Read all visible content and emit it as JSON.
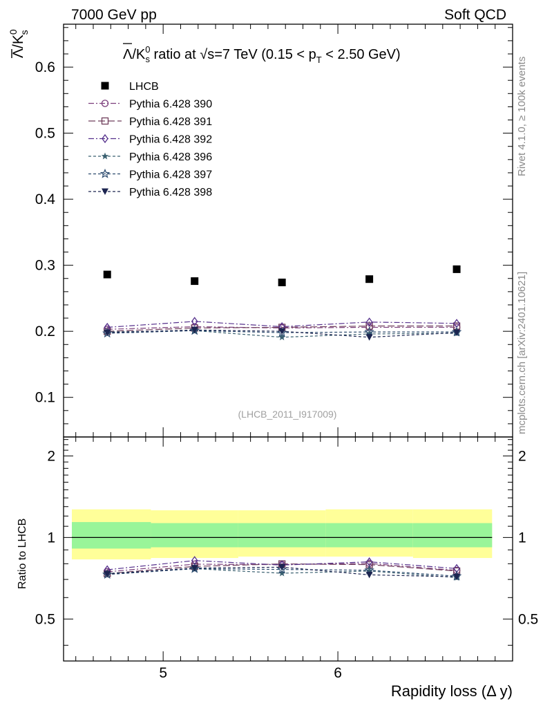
{
  "header": {
    "left": "7000 GeV pp",
    "right": "Soft QCD"
  },
  "side_labels": {
    "top": "Rivet 4.1.0, ≥ 100k events",
    "bottom": "mcplots.cern.ch [arXiv:2401.10621]"
  },
  "watermark": "(LHCB_2011_I917009)",
  "colors": {
    "data": "#000000",
    "band_outer": "#ffff99",
    "band_inner": "#99f599",
    "p390": "#7a3c7a",
    "p391": "#6e3c5a",
    "p392": "#55308c",
    "p396": "#3a6070",
    "p397": "#2b4a6e",
    "p398": "#1c2550"
  },
  "chart_data": [
    {
      "panel": "main",
      "type": "scatter",
      "title_parts": {
        "lambda": "Λ",
        "k": "/K",
        "k_sup": "0",
        "k_sub": "s",
        "mid": " ratio at √s=7 TeV (0.15 < p",
        "pt_sub": "T",
        "end": " < 2.50 GeV)"
      },
      "ylabel_parts": {
        "lambda": "Λ",
        "k": "/K",
        "sup": "0",
        "sub": "s"
      },
      "xlim": [
        4.43,
        7.0
      ],
      "ylim": [
        0.04,
        0.665
      ],
      "yticks": [
        0.1,
        0.2,
        0.3,
        0.4,
        0.5,
        0.6
      ],
      "ytick_labels": [
        "0.1",
        "0.2",
        "0.3",
        "0.4",
        "0.5",
        "0.6"
      ],
      "x": [
        4.68,
        5.18,
        5.68,
        6.18,
        6.68
      ],
      "series": [
        {
          "name": "LHCB",
          "style": "data",
          "marker": "square-filled",
          "values": [
            0.286,
            0.276,
            0.274,
            0.279,
            0.294
          ]
        },
        {
          "name": "Pythia 6.428 390",
          "style": "p390",
          "marker": "circle-open",
          "dash": "8 3 2 3",
          "values": [
            0.203,
            0.207,
            0.205,
            0.206,
            0.206
          ]
        },
        {
          "name": "Pythia 6.428 391",
          "style": "p391",
          "marker": "square-open",
          "dash": "10 4",
          "values": [
            0.2,
            0.205,
            0.206,
            0.208,
            0.208
          ]
        },
        {
          "name": "Pythia 6.428 392",
          "style": "p392",
          "marker": "diamond-open",
          "dash": "8 3 2 3",
          "values": [
            0.206,
            0.215,
            0.207,
            0.214,
            0.212
          ]
        },
        {
          "name": "Pythia 6.428 396",
          "style": "p396",
          "marker": "star-filled",
          "dash": "4 3",
          "values": [
            0.199,
            0.201,
            0.191,
            0.196,
            0.197
          ]
        },
        {
          "name": "Pythia 6.428 397",
          "style": "p397",
          "marker": "star-open",
          "dash": "4 3",
          "values": [
            0.197,
            0.201,
            0.198,
            0.199,
            0.199
          ]
        },
        {
          "name": "Pythia 6.428 398",
          "style": "p398",
          "marker": "triangle-down-filled",
          "dash": "4 3",
          "values": [
            0.198,
            0.202,
            0.2,
            0.191,
            0.198
          ]
        }
      ]
    },
    {
      "panel": "ratio",
      "type": "scatter",
      "ylabel": "Ratio to LHCB",
      "xlabel": "Rapidity loss (Δ y)",
      "xlim": [
        4.43,
        7.0
      ],
      "ylim": [
        0.35,
        2.35
      ],
      "xticks": [
        5,
        6
      ],
      "xtick_labels": [
        "5",
        "6"
      ],
      "yticks": [
        0.5,
        1,
        2
      ],
      "ytick_labels": [
        "0.5",
        "1",
        "2"
      ],
      "bin_edges": [
        4.43,
        4.93,
        5.43,
        5.93,
        6.43,
        6.93
      ],
      "band_outer": [
        [
          0.83,
          1.27
        ],
        [
          0.84,
          1.26
        ],
        [
          0.85,
          1.26
        ],
        [
          0.85,
          1.27
        ],
        [
          0.84,
          1.27
        ]
      ],
      "band_inner": [
        [
          0.91,
          1.14
        ],
        [
          0.92,
          1.13
        ],
        [
          0.92,
          1.13
        ],
        [
          0.92,
          1.13
        ],
        [
          0.92,
          1.13
        ]
      ],
      "x": [
        4.68,
        5.18,
        5.68,
        6.18,
        6.68
      ],
      "series": [
        {
          "name": "Pythia 6.428 390",
          "style": "p390",
          "marker": "circle-open",
          "dash": "8 3 2 3",
          "values": [
            0.747,
            0.797,
            0.794,
            0.802,
            0.756
          ]
        },
        {
          "name": "Pythia 6.428 391",
          "style": "p391",
          "marker": "square-open",
          "dash": "10 4",
          "values": [
            0.736,
            0.782,
            0.799,
            0.794,
            0.752
          ]
        },
        {
          "name": "Pythia 6.428 392",
          "style": "p392",
          "marker": "diamond-open",
          "dash": "8 3 2 3",
          "values": [
            0.76,
            0.822,
            0.791,
            0.813,
            0.768
          ]
        },
        {
          "name": "Pythia 6.428 396",
          "style": "p396",
          "marker": "star-filled",
          "dash": "4 3",
          "values": [
            0.736,
            0.767,
            0.738,
            0.752,
            0.711
          ]
        },
        {
          "name": "Pythia 6.428 397",
          "style": "p397",
          "marker": "star-open",
          "dash": "4 3",
          "values": [
            0.73,
            0.767,
            0.762,
            0.757,
            0.72
          ]
        },
        {
          "name": "Pythia 6.428 398",
          "style": "p398",
          "marker": "triangle-down-filled",
          "dash": "4 3",
          "values": [
            0.733,
            0.771,
            0.777,
            0.728,
            0.716
          ]
        }
      ]
    }
  ]
}
